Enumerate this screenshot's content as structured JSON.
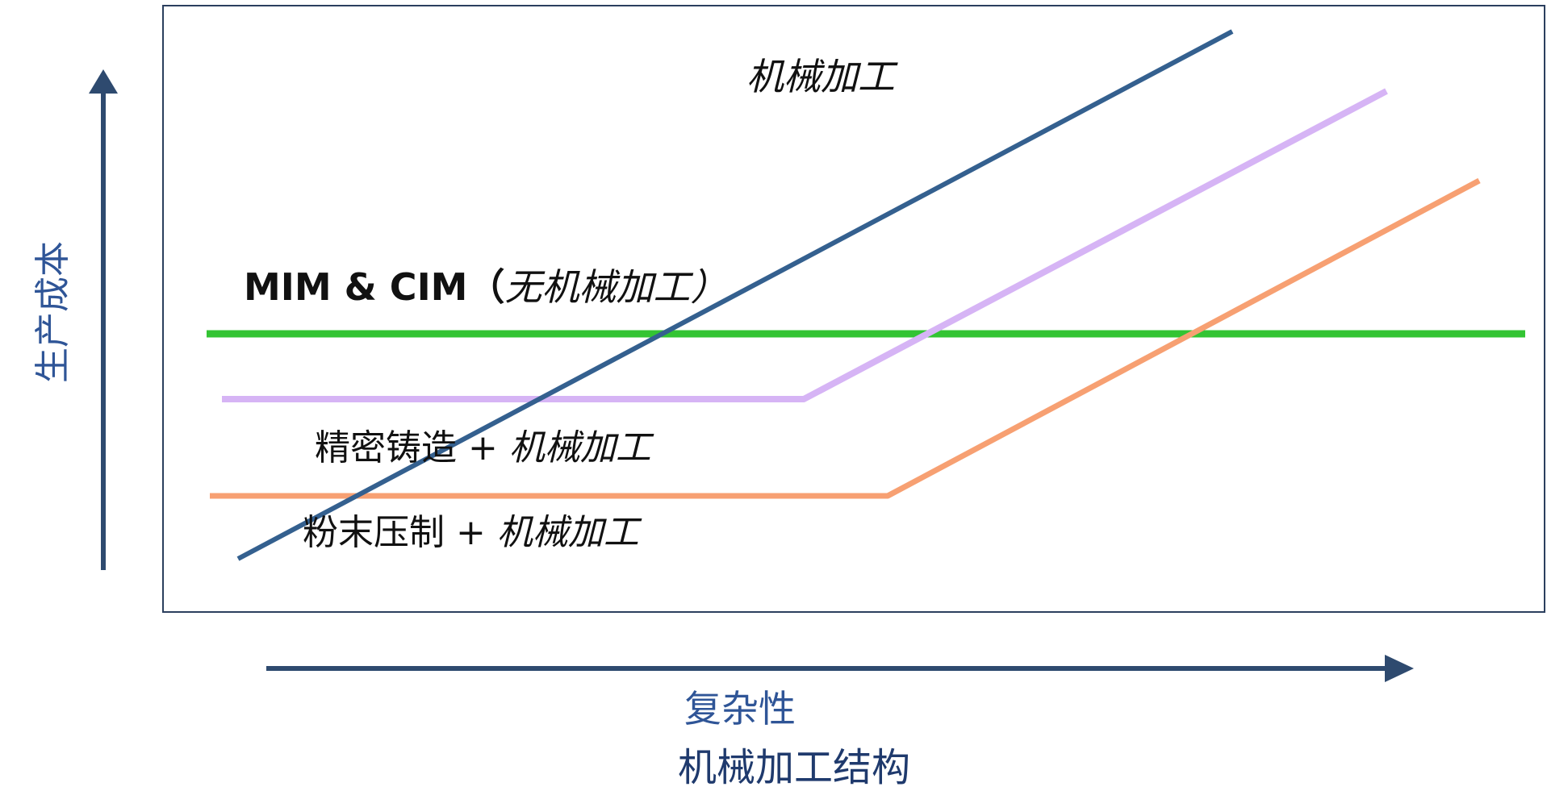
{
  "labels": {
    "machining": "机械加工",
    "mim_prefix": "MIM & CIM（",
    "mim_suffix": "无机械加工）",
    "casting_prefix": "精密铸造 + ",
    "casting_suffix": "机械加工",
    "powder_prefix": "粉末压制 + ",
    "powder_suffix": "机械加工"
  },
  "axes": {
    "y_label": "生产成本",
    "x_label": "复杂性",
    "subtitle": "机械加工结构"
  },
  "colors": {
    "frame": "#2b3f5e",
    "arrow": "#2e4a6f",
    "machining_line": "#34608f",
    "mim_line": "#33c433",
    "casting_line": "#d6b4f5",
    "powder_line": "#f7a072"
  }
}
